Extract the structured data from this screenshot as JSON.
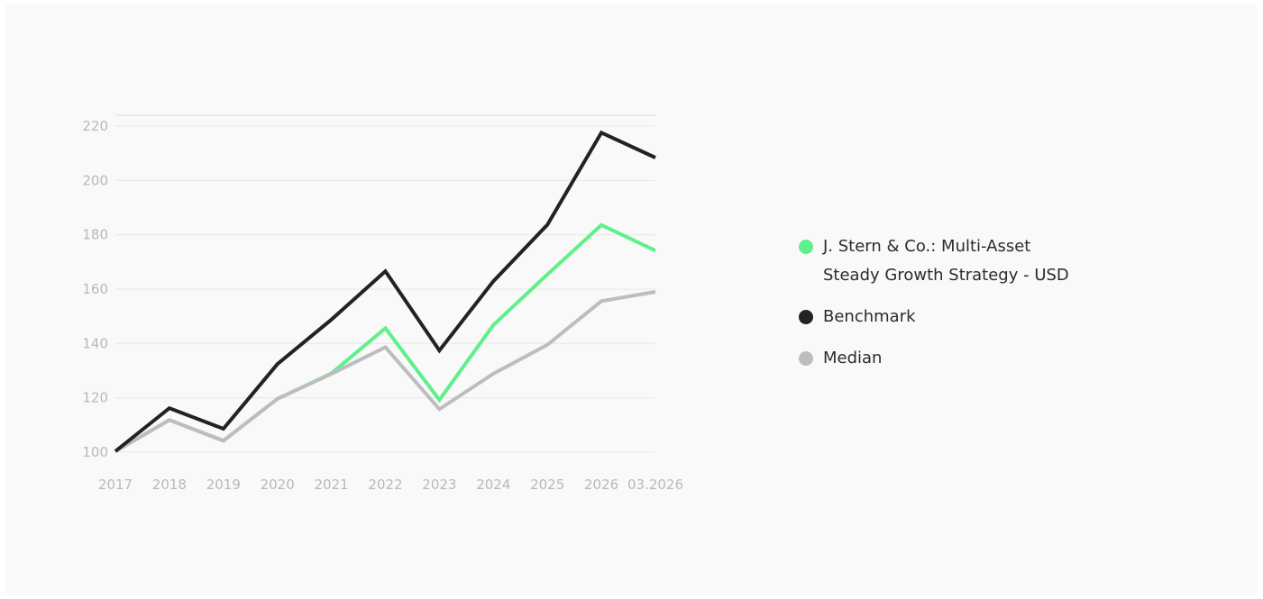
{
  "chart_data": {
    "type": "line",
    "categories": [
      "2017",
      "2018",
      "2019",
      "2020",
      "2021",
      "2022",
      "2023",
      "2024",
      "2025",
      "2026",
      "03.2026"
    ],
    "y_ticks": [
      "100",
      "120",
      "140",
      "160",
      "180",
      "200",
      "220"
    ],
    "ylim": [
      95,
      224
    ],
    "grid": true,
    "legend_position": "right",
    "series": [
      {
        "name": "J. Stern & Co.: Multi-Asset Steady Growth Strategy - USD",
        "color": "#5ef08a",
        "values": [
          100.3,
          111.8,
          104.2,
          119.6,
          129.0,
          145.6,
          119.2,
          146.8,
          165.4,
          183.6,
          174.2
        ]
      },
      {
        "name": "Benchmark",
        "color": "#222222",
        "values": [
          100.3,
          116.2,
          108.6,
          132.4,
          148.8,
          166.6,
          137.4,
          162.9,
          183.7,
          217.6,
          208.4
        ]
      },
      {
        "name": "Median",
        "color": "#bdbdbd",
        "values": [
          100.3,
          111.8,
          104.2,
          119.6,
          128.8,
          138.6,
          115.8,
          128.9,
          139.5,
          155.6,
          159.0
        ]
      }
    ]
  },
  "legend": {
    "items": [
      {
        "label_line1": "J. Stern & Co.: Multi-Asset",
        "label_line2": "Steady Growth Strategy - USD",
        "color": "#5ef08a"
      },
      {
        "label_line1": "Benchmark",
        "color": "#222222"
      },
      {
        "label_line1": "Median",
        "color": "#bdbdbd"
      }
    ]
  }
}
